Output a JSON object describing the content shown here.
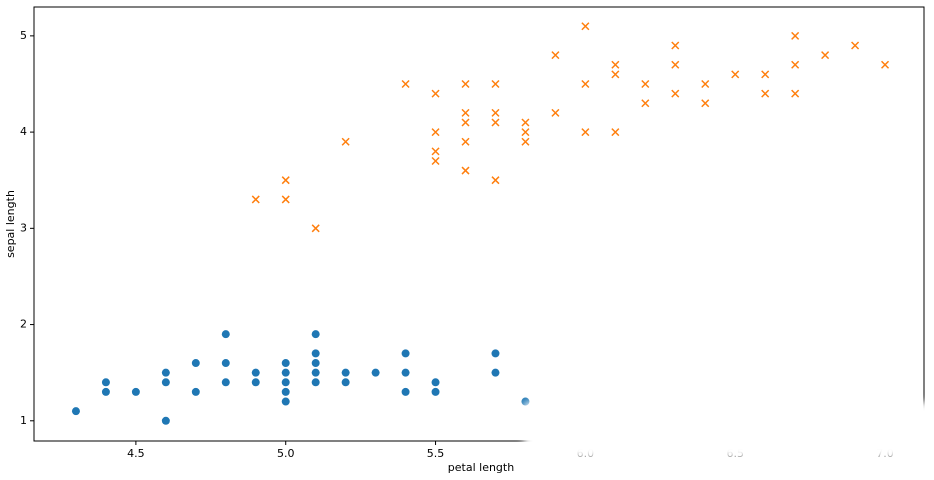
{
  "chart_data": {
    "type": "scatter",
    "x_label": "petal length",
    "y_label": "sepal length",
    "series": [
      {
        "color": "#1f77b4",
        "marker": "circle",
        "x": [
          4.3,
          4.4,
          4.4,
          4.5,
          4.6,
          4.6,
          4.6,
          4.7,
          4.7,
          4.8,
          4.8,
          4.8,
          4.9,
          4.9,
          5.0,
          5.0,
          5.0,
          5.0,
          5.0,
          5.1,
          5.1,
          5.1,
          5.1,
          5.1,
          5.2,
          5.2,
          5.3,
          5.4,
          5.4,
          5.4,
          5.5,
          5.5,
          5.7,
          5.7,
          5.8
        ],
        "values": [
          1.1,
          1.4,
          1.3,
          1.3,
          1.5,
          1.4,
          1.0,
          1.6,
          1.3,
          1.9,
          1.6,
          1.4,
          1.5,
          1.4,
          1.6,
          1.5,
          1.4,
          1.3,
          1.2,
          1.9,
          1.7,
          1.6,
          1.5,
          1.4,
          1.5,
          1.4,
          1.5,
          1.7,
          1.5,
          1.3,
          1.4,
          1.3,
          1.7,
          1.5,
          1.2
        ]
      },
      {
        "color": "#ff7f0e",
        "marker": "x",
        "x": [
          4.9,
          5.0,
          5.0,
          5.1,
          5.2,
          5.4,
          5.5,
          5.5,
          5.5,
          5.5,
          5.6,
          5.6,
          5.6,
          5.6,
          5.6,
          5.7,
          5.7,
          5.7,
          5.7,
          5.8,
          5.8,
          5.8,
          5.9,
          5.9,
          6.0,
          6.0,
          6.0,
          6.1,
          6.1,
          6.1,
          6.2,
          6.2,
          6.3,
          6.3,
          6.3,
          6.4,
          6.4,
          6.5,
          6.6,
          6.6,
          6.7,
          6.7,
          6.7,
          6.8,
          6.9,
          7.0
        ],
        "values": [
          3.3,
          3.5,
          3.3,
          3.0,
          3.9,
          4.5,
          4.4,
          4.0,
          3.8,
          3.7,
          4.5,
          4.2,
          4.1,
          3.9,
          3.6,
          4.5,
          4.2,
          4.1,
          3.5,
          4.1,
          4.0,
          3.9,
          4.8,
          4.2,
          5.1,
          4.5,
          4.0,
          4.7,
          4.6,
          4.0,
          4.5,
          4.3,
          4.9,
          4.7,
          4.4,
          4.5,
          4.3,
          4.6,
          4.6,
          4.4,
          5.0,
          4.7,
          4.4,
          4.8,
          4.9,
          4.7
        ]
      }
    ],
    "xlim": [
      4.16,
      7.13
    ],
    "ylim": [
      0.79,
      5.3
    ],
    "xticks": [
      {
        "value": 4.5,
        "label": "4.5"
      },
      {
        "value": 5,
        "label": "5.0"
      },
      {
        "value": 5.5,
        "label": "5.5"
      },
      {
        "value": 6,
        "label": "6.0"
      },
      {
        "value": 6.5,
        "label": "6.5"
      },
      {
        "value": 7,
        "label": "7.0"
      }
    ],
    "yticks": [
      1,
      2,
      3,
      4,
      5
    ]
  }
}
